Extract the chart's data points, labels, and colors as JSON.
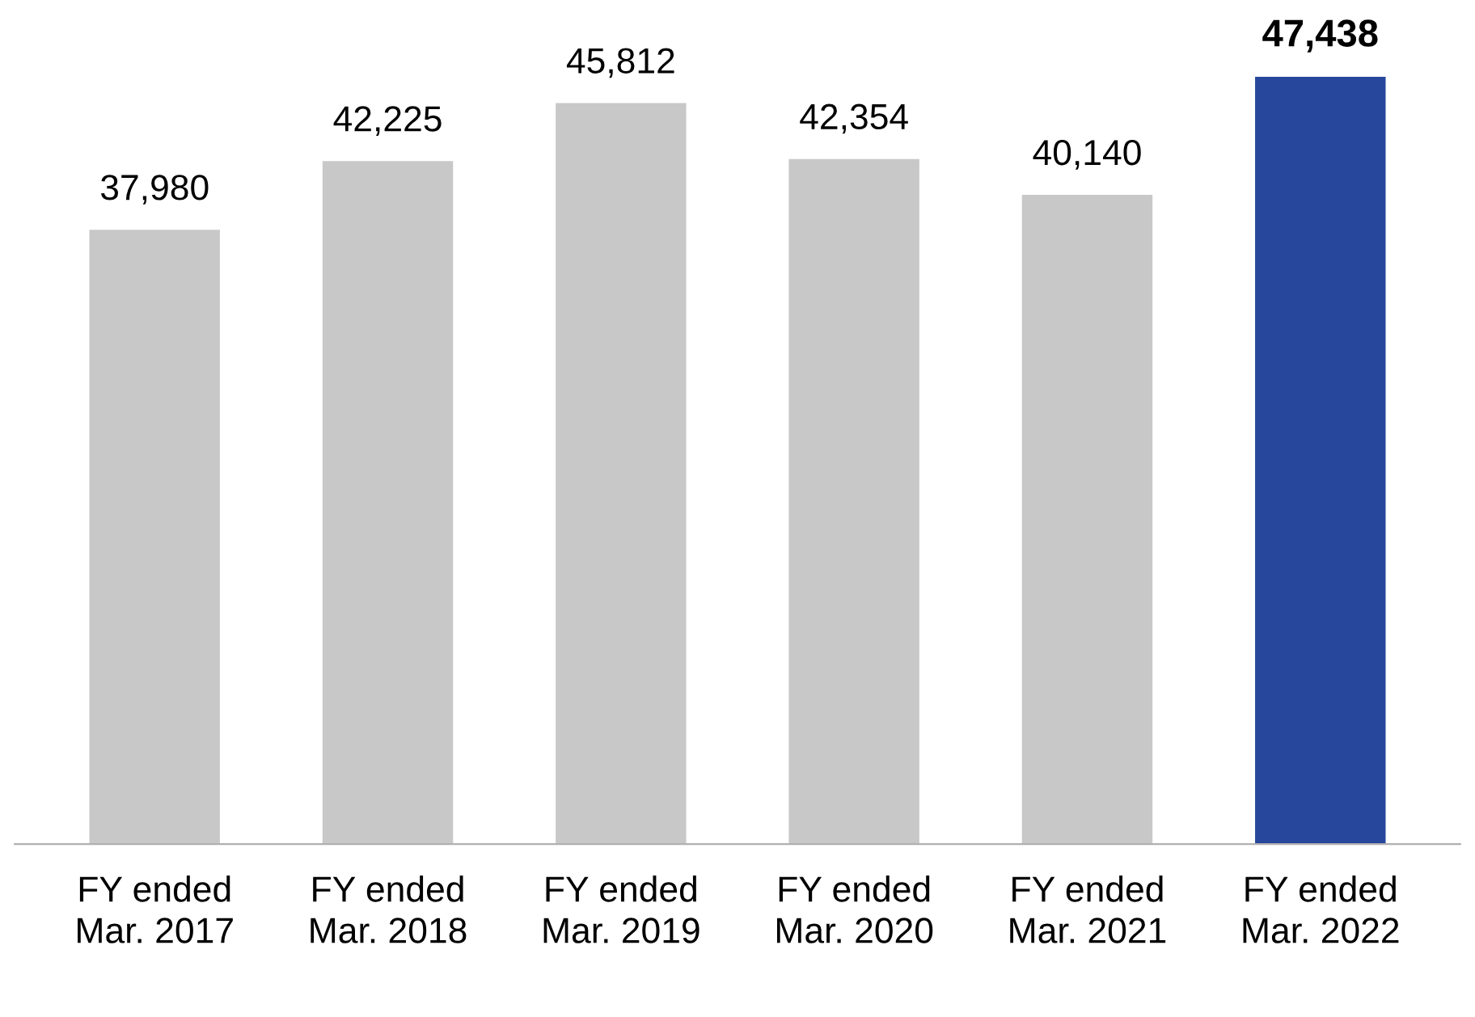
{
  "chart_data": {
    "type": "bar",
    "categories": [
      "FY ended\nMar. 2017",
      "FY ended\nMar. 2018",
      "FY ended\nMar. 2019",
      "FY ended\nMar. 2020",
      "FY ended\nMar. 2021",
      "FY ended\nMar. 2022"
    ],
    "values": [
      37980,
      42225,
      45812,
      42354,
      40140,
      47438
    ],
    "colors": [
      "#c8c8c8",
      "#c8c8c8",
      "#c8c8c8",
      "#c8c8c8",
      "#c8c8c8",
      "#26479c"
    ],
    "value_labels": [
      "37,980",
      "42,225",
      "45,812",
      "42,354",
      "40,140",
      "47,438"
    ],
    "grid": false,
    "legend": false
  }
}
